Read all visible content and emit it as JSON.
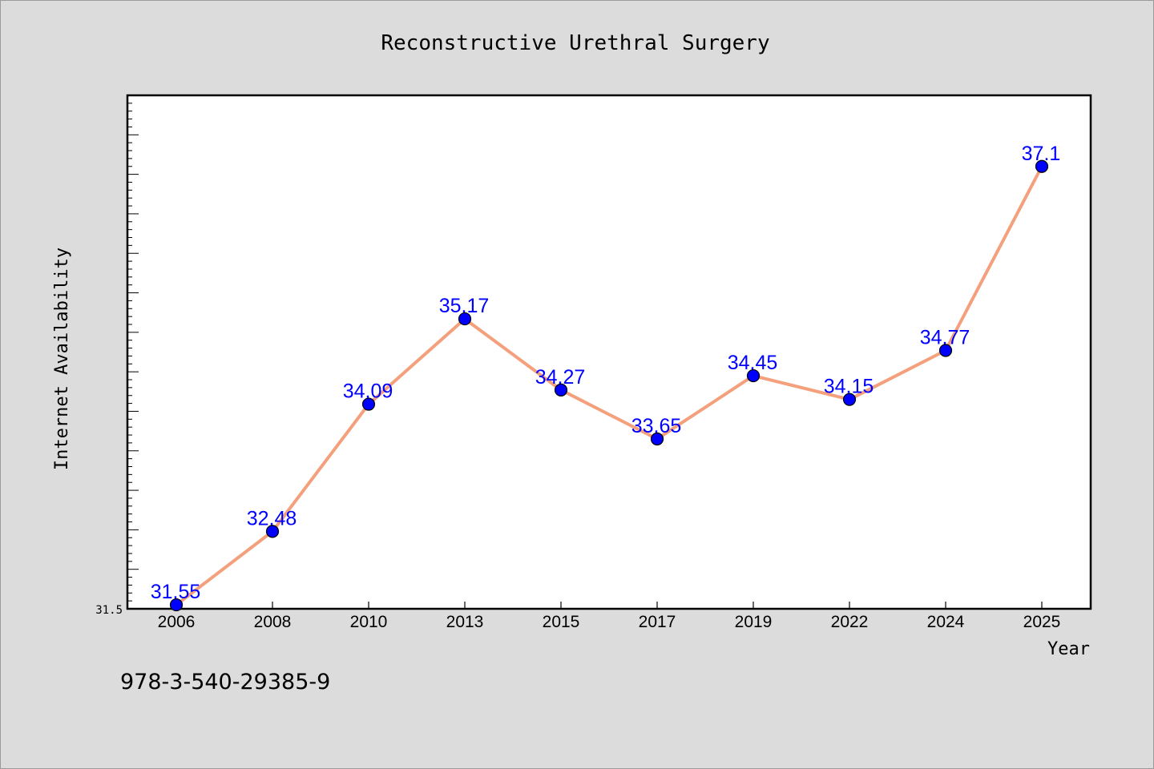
{
  "chart_data": {
    "type": "line",
    "title": "Reconstructive Urethral Surgery",
    "xlabel": "Year",
    "ylabel": "Internet Availability",
    "categories": [
      "2006",
      "2008",
      "2010",
      "2013",
      "2015",
      "2017",
      "2019",
      "2022",
      "2024",
      "2025"
    ],
    "values": [
      31.55,
      32.48,
      34.09,
      35.17,
      34.27,
      33.65,
      34.45,
      34.15,
      34.77,
      37.1
    ],
    "data_labels": [
      "31.55",
      "32.48",
      "34.09",
      "35.17",
      "34.27",
      "33.65",
      "34.45",
      "34.15",
      "34.77",
      "37.1"
    ],
    "ylim": [
      31.5,
      38.0
    ],
    "y_min_label": "31.5",
    "grid": false,
    "line_color": "#f4a07c",
    "marker_color": "#0000ff",
    "label_color": "#0000ff"
  },
  "footer": {
    "code": "978-3-540-29385-9"
  }
}
